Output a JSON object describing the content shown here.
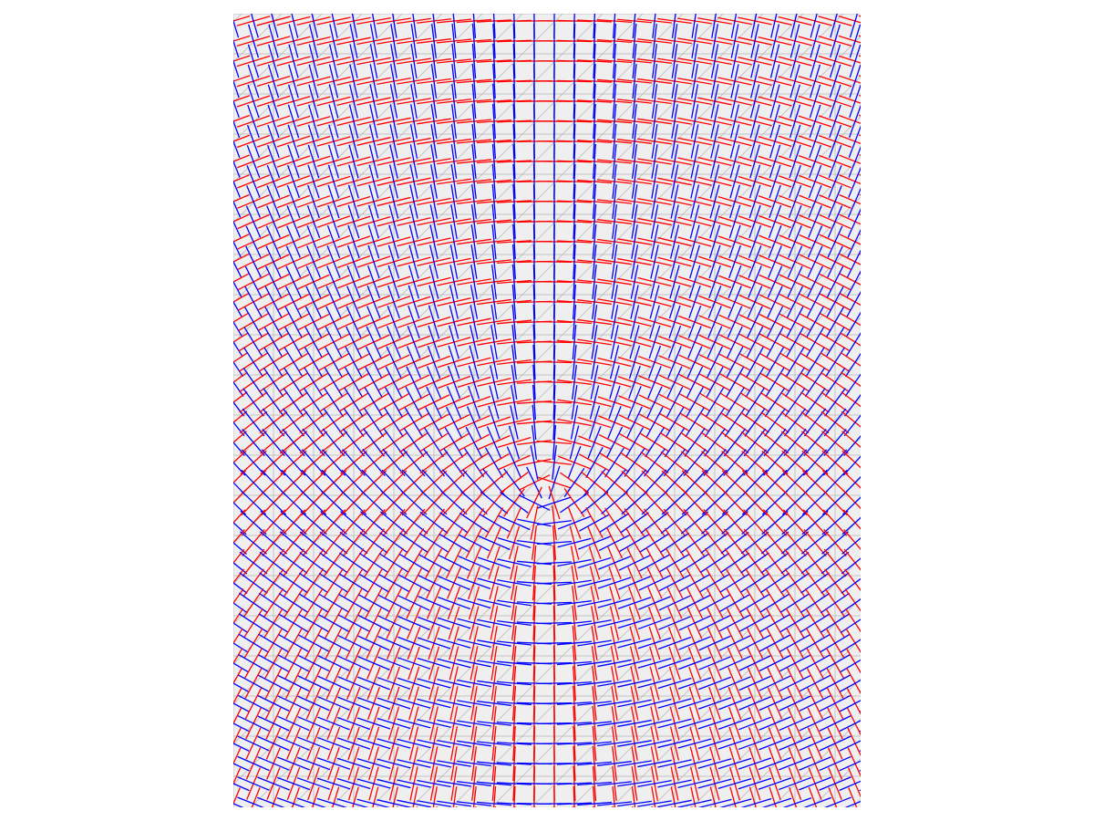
{
  "chart_data": {
    "type": "quiver"
  }
}
